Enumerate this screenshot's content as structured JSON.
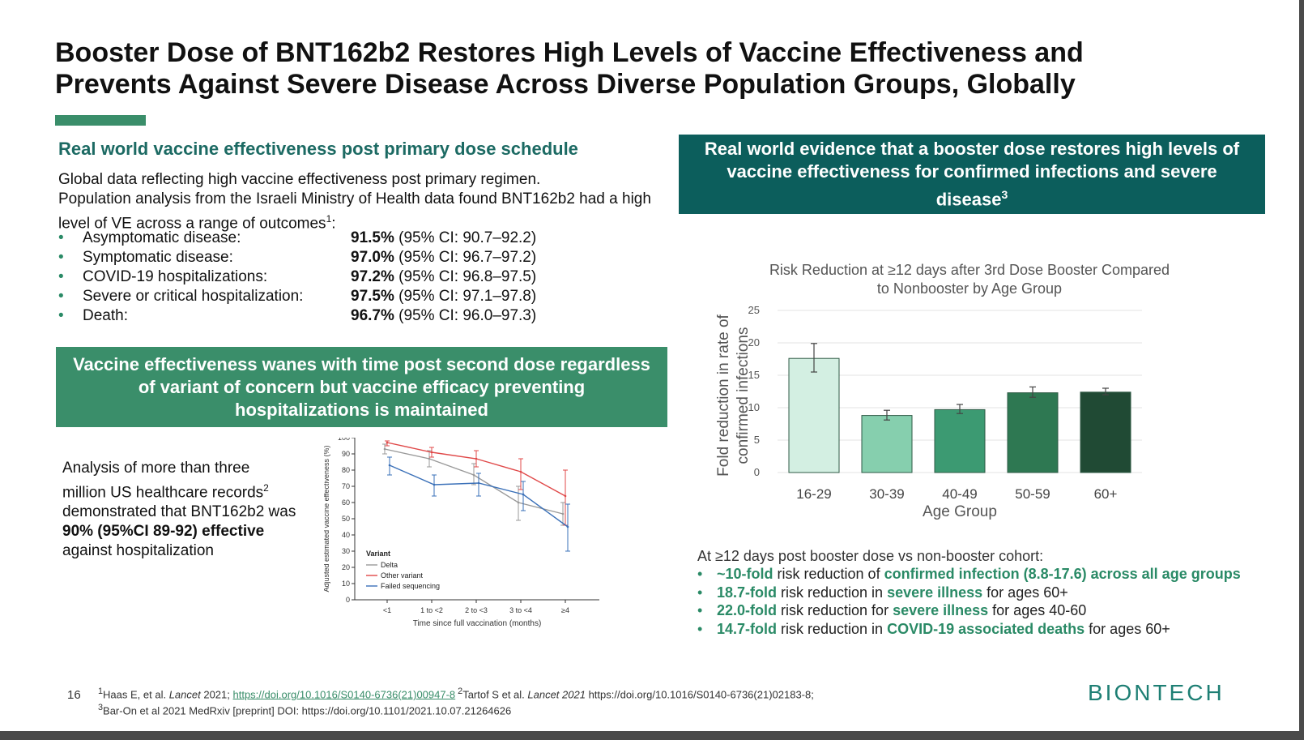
{
  "title": {
    "line1": "Booster Dose of BNT162b2 Restores High Levels of Vaccine Effectiveness and",
    "line2": "Prevents Against Severe Disease Across Diverse Population Groups, Globally"
  },
  "colors": {
    "teal_dark": "#0c5e5c",
    "green": "#3a8e6a",
    "heading_teal": "#1c6a63",
    "bullet_green": "#2a8a66"
  },
  "left": {
    "heading": "Real world vaccine effectiveness post primary dose schedule",
    "intro_1": "Global data reflecting high vaccine effectiveness post primary regimen.",
    "intro_2": "Population analysis from the Israeli Ministry of Health data found BNT162b2 had a high level of VE across a range of outcomes",
    "intro_sup": "1",
    "intro_end": ":",
    "outcomes": [
      {
        "label": "Asymptomatic disease:",
        "value": "91.5%",
        "ci": "(95% CI: 90.7–92.2)"
      },
      {
        "label": "Symptomatic disease:",
        "value": "97.0%",
        "ci": "(95% CI: 96.7–97.2)"
      },
      {
        "label": "COVID-19 hospitalizations:",
        "value": "97.2%",
        "ci": "(95% CI: 96.8–97.5)"
      },
      {
        "label": "Severe or critical hospitalization:",
        "value": "97.5%",
        "ci": "(95% CI: 97.1–97.8)"
      },
      {
        "label": "Death:",
        "value": "96.7%",
        "ci": "(95% CI: 96.0–97.3)"
      }
    ],
    "waning_box": "Vaccine effectiveness wanes with time post second dose regardless of variant of concern but vaccine efficacy preventing hospitalizations is maintained",
    "analysis": {
      "t1": "Analysis of more than three million US healthcare records",
      "sup": "2",
      "t2": " demonstrated that BNT162b2 was ",
      "bold": "90% (95%CI 89-92) effective",
      "t3": " against hospitalization"
    }
  },
  "right": {
    "box": "Real world evidence that a booster dose restores high levels of vaccine effectiveness for confirmed infections and severe disease",
    "box_sup": "3",
    "findings_lead": "At ≥12 days post booster dose vs non-booster cohort:",
    "findings": [
      {
        "a": "~10-fold",
        "b": " risk reduction of ",
        "c": "confirmed infection (8.8-17.6) across all age groups",
        "d": ""
      },
      {
        "a": "18.7-fold",
        "b": " risk reduction in ",
        "c": "severe illness",
        "d": " for ages 60+"
      },
      {
        "a": "22.0-fold",
        "b": " risk reduction for ",
        "c": "severe illness",
        "d": " for ages 40-60"
      },
      {
        "a": "14.7-fold",
        "b": " risk reduction in ",
        "c": "COVID-19 associated deaths",
        "d": " for ages 60+"
      }
    ]
  },
  "chart_data": [
    {
      "type": "line",
      "title": "",
      "xlabel": "Time since full vaccination (months)",
      "ylabel": "Adjusted estimated vaccine effectiveness (%)",
      "categories": [
        "<1",
        "1 to <2",
        "2 to <3",
        "3 to <4",
        "≥4"
      ],
      "ylim": [
        0,
        100
      ],
      "yticks": [
        0,
        10,
        20,
        30,
        40,
        50,
        60,
        70,
        80,
        90,
        100
      ],
      "legend_title": "Variant",
      "legend_position": "bottom-left",
      "series": [
        {
          "name": "Delta",
          "color": "#999999",
          "values": [
            93,
            87,
            77,
            60,
            53
          ],
          "err_low": [
            90,
            82,
            71,
            49,
            46
          ],
          "err_high": [
            96,
            92,
            84,
            70,
            60
          ]
        },
        {
          "name": "Other variant",
          "color": "#e04848",
          "values": [
            97,
            91,
            87,
            79,
            64
          ],
          "err_low": [
            95,
            88,
            82,
            68,
            46
          ],
          "err_high": [
            98,
            94,
            92,
            87,
            80
          ]
        },
        {
          "name": "Failed sequencing",
          "color": "#3a70b8",
          "values": [
            83,
            71,
            72,
            65,
            45
          ],
          "err_low": [
            77,
            64,
            64,
            55,
            30
          ],
          "err_high": [
            88,
            77,
            78,
            73,
            59
          ]
        }
      ]
    },
    {
      "type": "bar",
      "title": "Risk Reduction at ≥12 days after 3rd Dose Booster Compared to Nonbooster by Age Group",
      "xlabel": "Age Group",
      "ylabel": "Fold reduction in rate of confirmed infections",
      "categories": [
        "16-29",
        "30-39",
        "40-49",
        "50-59",
        "60+"
      ],
      "values": [
        17.6,
        8.8,
        9.7,
        12.3,
        12.4
      ],
      "err_low": [
        15.5,
        8.1,
        9.1,
        11.6,
        12.0
      ],
      "err_high": [
        19.9,
        9.6,
        10.5,
        13.2,
        13.0
      ],
      "colors": [
        "#d3efe2",
        "#86cfae",
        "#3c9a72",
        "#2e7852",
        "#204a34"
      ],
      "ylim": [
        0,
        25
      ],
      "yticks": [
        0,
        5,
        10,
        15,
        20,
        25
      ],
      "grid": true
    }
  ],
  "footer": {
    "page": "16",
    "ref1_sup": "1",
    "ref1_text": "Haas E, et al. ",
    "ref1_journal": "Lancet",
    "ref1_year": " 2021; ",
    "ref1_link": "https://doi.org/10.1016/S0140-6736(21)00947-8",
    "ref2_sup": " 2",
    "ref2_text": "Tartof S et al. ",
    "ref2_journal": "Lancet 2021",
    "ref2_rest": " https://doi.org/10.1016/S0140-6736(21)02183-8;",
    "ref3_sup": "3",
    "ref3_text": "Bar-On et al 2021 MedRxiv [preprint] DOI: https://doi.org/10.1101/2021.10.07.21264626",
    "logo": "BIONTECH"
  }
}
